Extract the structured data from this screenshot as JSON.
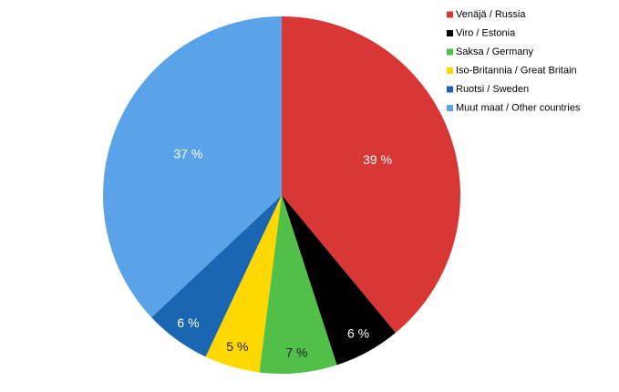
{
  "chart_data": {
    "type": "pie",
    "categories": [
      "Venäjä / Russia",
      "Viro / Estonia",
      "Saksa / Germany",
      "Iso-Britannia / Great Britain",
      "Ruotsi / Sweden",
      "Muut maat / Other countries"
    ],
    "values": [
      39,
      6,
      7,
      5,
      6,
      37
    ],
    "value_labels": [
      "39 %",
      "6 %",
      "7 %",
      "5 %",
      "6 %",
      "37 %"
    ],
    "colors": [
      "#d93636",
      "#000000",
      "#50c048",
      "#ffd800",
      "#1a66b3",
      "#5ba3e8"
    ],
    "legend": "top-right"
  }
}
